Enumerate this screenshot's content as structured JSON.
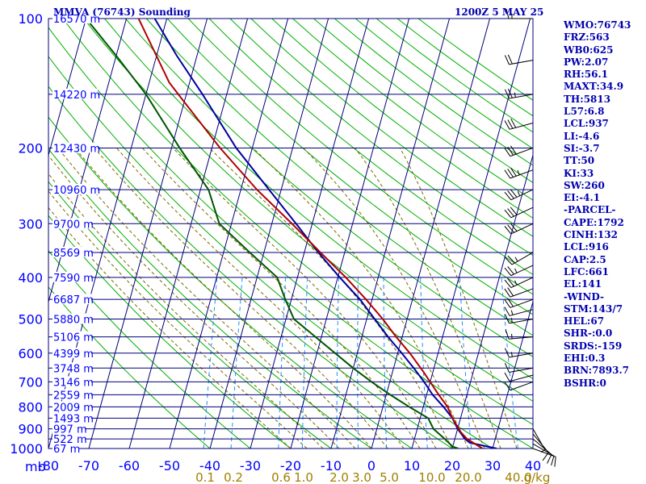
{
  "header": {
    "station": "MMVA (76743) Sounding",
    "time": "1200Z  5 MAY 25"
  },
  "stats": [
    "WMO:76743",
    "FRZ:563",
    "WB0:625",
    "PW:2.07",
    "RH:56.1",
    "MAXT:34.9",
    "TH:5813",
    "L57:6.8",
    "LCL:937",
    "LI:-4.6",
    "SI:-3.7",
    "TT:50",
    "KI:33",
    "SW:260",
    "EI:-4.1",
    "-PARCEL-",
    "CAPE:1792",
    "CINH:132",
    "LCL:916",
    "CAP:2.5",
    "LFC:661",
    "EL:141",
    "-WIND-",
    "STM:143/7",
    "HEL:67",
    "SHR-:0.0",
    "SRDS:-159",
    "EHI:0.3",
    "BRN:7893.7",
    "BSHR:0"
  ],
  "colors": {
    "grid": "#00007a",
    "axis_text": "#0000ff",
    "dry_adiabat": "#00b000",
    "moist_adiabat": "#7a6a00",
    "mixing_ratio": "#1e90ff",
    "mixing_ratio_text": "#a08000",
    "temperature": "#0000a0",
    "dewpoint": "#005500",
    "parcel": "#b00000",
    "stats_text": "#0000b0",
    "wind_barb": "#000000"
  },
  "chart_data": {
    "type": "line",
    "xlabel": "",
    "ylabel": "mb",
    "temperature_ticks": [
      -80,
      -70,
      -60,
      -50,
      -40,
      -30,
      -20,
      -10,
      0,
      10,
      20,
      30,
      40
    ],
    "temperature_tick_labels": [
      "-80",
      "-70",
      "-60",
      "-50",
      "-40",
      "-30",
      "-20",
      "-10",
      "0",
      "10",
      "20",
      "30",
      "40"
    ],
    "pressure_ticks": [
      100,
      200,
      300,
      400,
      500,
      600,
      700,
      800,
      900,
      1000
    ],
    "pressure_tick_labels": [
      "100",
      "200",
      "300",
      "400",
      "500",
      "600",
      "700",
      "800",
      "900",
      "1000"
    ],
    "mixing_ratio_labels": [
      "0.1",
      "0.2",
      "0.6",
      "1.0",
      "2.0",
      "3.0",
      "5.0",
      "10.0",
      "20.0",
      "40.0",
      "g/kg"
    ],
    "height_labels": [
      {
        "p": 100,
        "label": "16570 m"
      },
      {
        "p": 150,
        "label": "14220 m"
      },
      {
        "p": 200,
        "label": "12430 m"
      },
      {
        "p": 250,
        "label": "10960 m"
      },
      {
        "p": 300,
        "label": "9700 m"
      },
      {
        "p": 350,
        "label": "8569 m"
      },
      {
        "p": 400,
        "label": "7590 m"
      },
      {
        "p": 450,
        "label": "6687 m"
      },
      {
        "p": 500,
        "label": "5880 m"
      },
      {
        "p": 550,
        "label": "5106 m"
      },
      {
        "p": 600,
        "label": "4399 m"
      },
      {
        "p": 650,
        "label": "3748 m"
      },
      {
        "p": 700,
        "label": "3146 m"
      },
      {
        "p": 750,
        "label": "2559 m"
      },
      {
        "p": 800,
        "label": "2009 m"
      },
      {
        "p": 850,
        "label": "1493 m"
      },
      {
        "p": 900,
        "label": "997 m"
      },
      {
        "p": 950,
        "label": "522 m"
      },
      {
        "p": 1000,
        "label": "67 m"
      }
    ],
    "series": [
      {
        "name": "",
        "role": "temperature",
        "points": [
          {
            "p": 1000,
            "t": 31
          },
          {
            "p": 970,
            "t": 24
          },
          {
            "p": 950,
            "t": 22.5
          },
          {
            "p": 900,
            "t": 20
          },
          {
            "p": 850,
            "t": 18
          },
          {
            "p": 800,
            "t": 15
          },
          {
            "p": 750,
            "t": 11.5
          },
          {
            "p": 700,
            "t": 8.5
          },
          {
            "p": 650,
            "t": 5
          },
          {
            "p": 600,
            "t": 1
          },
          {
            "p": 550,
            "t": -3.5
          },
          {
            "p": 500,
            "t": -8
          },
          {
            "p": 450,
            "t": -13
          },
          {
            "p": 400,
            "t": -19.5
          },
          {
            "p": 350,
            "t": -26.5
          },
          {
            "p": 300,
            "t": -34
          },
          {
            "p": 250,
            "t": -43
          },
          {
            "p": 200,
            "t": -54
          },
          {
            "p": 150,
            "t": -66
          },
          {
            "p": 122,
            "t": -75
          },
          {
            "p": 100,
            "t": -83
          }
        ]
      },
      {
        "name": "",
        "role": "dewpoint",
        "points": [
          {
            "p": 1000,
            "t": 21.5
          },
          {
            "p": 990,
            "t": 20
          },
          {
            "p": 950,
            "t": 17.5
          },
          {
            "p": 900,
            "t": 14
          },
          {
            "p": 850,
            "t": 12
          },
          {
            "p": 800,
            "t": 6.5
          },
          {
            "p": 750,
            "t": 1
          },
          {
            "p": 700,
            "t": -4.5
          },
          {
            "p": 650,
            "t": -10
          },
          {
            "p": 600,
            "t": -15.5
          },
          {
            "p": 550,
            "t": -21.5
          },
          {
            "p": 500,
            "t": -28
          },
          {
            "p": 450,
            "t": -31.5
          },
          {
            "p": 400,
            "t": -35
          },
          {
            "p": 350,
            "t": -43.5
          },
          {
            "p": 300,
            "t": -53
          },
          {
            "p": 250,
            "t": -58
          },
          {
            "p": 200,
            "t": -68
          },
          {
            "p": 150,
            "t": -80
          },
          {
            "p": 122,
            "t": -90
          },
          {
            "p": 100,
            "t": -100
          }
        ]
      },
      {
        "name": "",
        "role": "parcel",
        "points": [
          {
            "p": 1000,
            "t": 27.5
          },
          {
            "p": 950,
            "t": 23
          },
          {
            "p": 916,
            "t": 21
          },
          {
            "p": 850,
            "t": 18
          },
          {
            "p": 800,
            "t": 16
          },
          {
            "p": 750,
            "t": 13
          },
          {
            "p": 700,
            "t": 10
          },
          {
            "p": 661,
            "t": 7.5
          },
          {
            "p": 600,
            "t": 3
          },
          {
            "p": 550,
            "t": -1.5
          },
          {
            "p": 500,
            "t": -6
          },
          {
            "p": 450,
            "t": -11.5
          },
          {
            "p": 400,
            "t": -18
          },
          {
            "p": 350,
            "t": -26
          },
          {
            "p": 300,
            "t": -35
          },
          {
            "p": 250,
            "t": -46
          },
          {
            "p": 200,
            "t": -58
          },
          {
            "p": 150,
            "t": -72
          },
          {
            "p": 141,
            "t": -75
          },
          {
            "p": 100,
            "t": -87
          }
        ]
      }
    ],
    "wind_barbs": [
      {
        "p": 1000,
        "dir": 110,
        "spd": 10
      },
      {
        "p": 975,
        "dir": 120,
        "spd": 10
      },
      {
        "p": 950,
        "dir": 130,
        "spd": 10
      },
      {
        "p": 925,
        "dir": 140,
        "spd": 10
      },
      {
        "p": 900,
        "dir": 150,
        "spd": 5
      },
      {
        "p": 700,
        "dir": 250,
        "spd": 10
      },
      {
        "p": 675,
        "dir": 255,
        "spd": 10
      },
      {
        "p": 650,
        "dir": 260,
        "spd": 10
      },
      {
        "p": 600,
        "dir": 260,
        "spd": 15
      },
      {
        "p": 550,
        "dir": 265,
        "spd": 15
      },
      {
        "p": 500,
        "dir": 260,
        "spd": 15
      },
      {
        "p": 475,
        "dir": 255,
        "spd": 15
      },
      {
        "p": 450,
        "dir": 250,
        "spd": 20
      },
      {
        "p": 425,
        "dir": 250,
        "spd": 20
      },
      {
        "p": 400,
        "dir": 245,
        "spd": 25
      },
      {
        "p": 375,
        "dir": 245,
        "spd": 25
      },
      {
        "p": 350,
        "dir": 240,
        "spd": 25
      },
      {
        "p": 300,
        "dir": 245,
        "spd": 30
      },
      {
        "p": 275,
        "dir": 245,
        "spd": 30
      },
      {
        "p": 250,
        "dir": 245,
        "spd": 35
      },
      {
        "p": 225,
        "dir": 250,
        "spd": 35
      },
      {
        "p": 200,
        "dir": 250,
        "spd": 30
      },
      {
        "p": 175,
        "dir": 255,
        "spd": 30
      },
      {
        "p": 150,
        "dir": 260,
        "spd": 25
      },
      {
        "p": 125,
        "dir": 260,
        "spd": 20
      },
      {
        "p": 100,
        "dir": 270,
        "spd": 15
      }
    ]
  }
}
